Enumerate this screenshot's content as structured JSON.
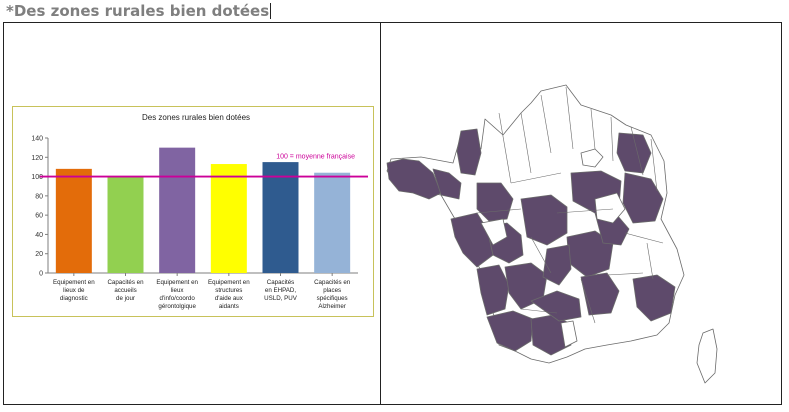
{
  "page": {
    "title": "*Des zones rurales bien dotées"
  },
  "chart_data": {
    "type": "bar",
    "title": "Des zones rurales bien dotées",
    "categories": [
      [
        "Equipement en",
        "lieux de",
        "diagnostic"
      ],
      [
        "Capacités en",
        "accueils",
        "de jour"
      ],
      [
        "Equipement en",
        "lieux",
        "d'info/coordo",
        "gérontolgique"
      ],
      [
        "Equipement en",
        "structures",
        "d'aide aux",
        "aidants"
      ],
      [
        "Capacités",
        "en EHPAD,",
        "USLD, PUV"
      ],
      [
        "Capacités en",
        "places",
        "spécifiques",
        "Alzheimer"
      ]
    ],
    "values": [
      108,
      100,
      130,
      113,
      115,
      104
    ],
    "bar_colors": [
      "#e36c0a",
      "#92d050",
      "#8064a2",
      "#ffff00",
      "#2f5b8f",
      "#95b3d7"
    ],
    "ylim": [
      0,
      140
    ],
    "yticks": [
      0,
      20,
      40,
      60,
      80,
      100,
      120,
      140
    ],
    "reference_line": {
      "value": 100,
      "label": "100 = moyenne française",
      "color": "#cc0099"
    },
    "grid": false,
    "legend": "none"
  },
  "map": {
    "fill_highlight": "#5e4a6b",
    "fill_other": "#ffffff",
    "stroke": "#6b6b6b"
  }
}
